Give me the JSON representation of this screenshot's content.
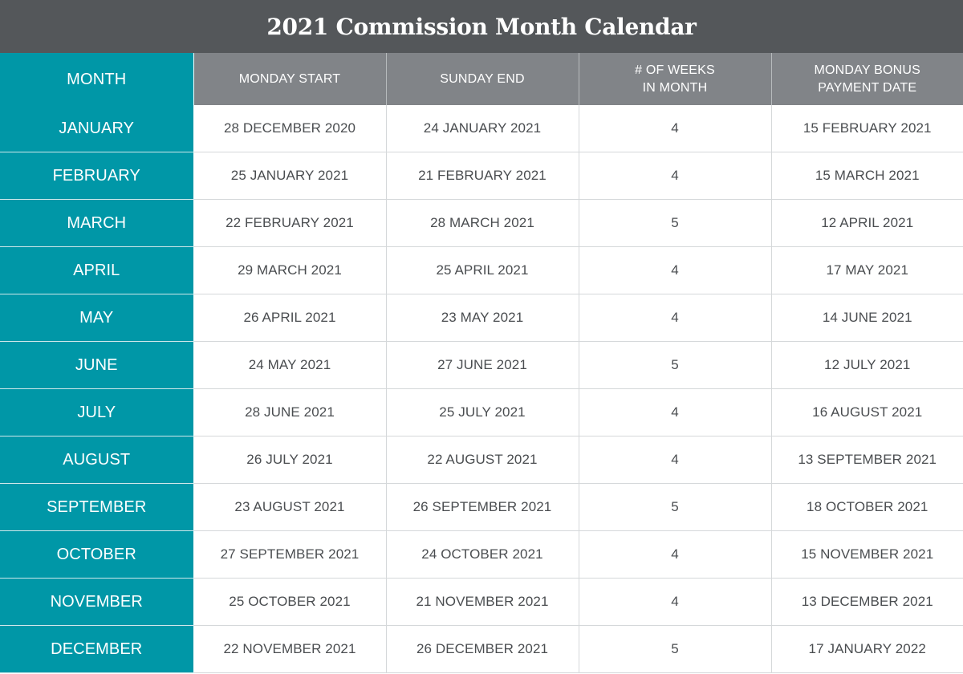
{
  "title": "2021 Commission Month Calendar",
  "colors": {
    "title_bar": "#54575a",
    "month_column": "#0097a7",
    "header_gray": "#818488",
    "body_text": "#4a4d50"
  },
  "headers": {
    "month": "MONTH",
    "monday_start": "MONDAY START",
    "sunday_end": "SUNDAY END",
    "weeks_line1": "# OF WEEKS",
    "weeks_line2": "IN MONTH",
    "bonus_line1": "MONDAY BONUS",
    "bonus_line2": "PAYMENT DATE"
  },
  "rows": [
    {
      "month": "JANUARY",
      "start": "28 DECEMBER 2020",
      "end": "24 JANUARY 2021",
      "weeks": "4",
      "payment": "15 FEBRUARY 2021"
    },
    {
      "month": "FEBRUARY",
      "start": "25 JANUARY 2021",
      "end": "21 FEBRUARY 2021",
      "weeks": "4",
      "payment": "15 MARCH 2021"
    },
    {
      "month": "MARCH",
      "start": "22 FEBRUARY 2021",
      "end": "28 MARCH 2021",
      "weeks": "5",
      "payment": "12 APRIL 2021"
    },
    {
      "month": "APRIL",
      "start": "29 MARCH 2021",
      "end": "25 APRIL 2021",
      "weeks": "4",
      "payment": "17 MAY 2021"
    },
    {
      "month": "MAY",
      "start": "26 APRIL 2021",
      "end": "23 MAY 2021",
      "weeks": "4",
      "payment": "14 JUNE 2021"
    },
    {
      "month": "JUNE",
      "start": "24 MAY 2021",
      "end": "27 JUNE 2021",
      "weeks": "5",
      "payment": "12 JULY 2021"
    },
    {
      "month": "JULY",
      "start": "28 JUNE 2021",
      "end": "25 JULY 2021",
      "weeks": "4",
      "payment": "16 AUGUST 2021"
    },
    {
      "month": "AUGUST",
      "start": "26 JULY 2021",
      "end": "22 AUGUST 2021",
      "weeks": "4",
      "payment": "13 SEPTEMBER 2021"
    },
    {
      "month": "SEPTEMBER",
      "start": "23 AUGUST 2021",
      "end": "26 SEPTEMBER 2021",
      "weeks": "5",
      "payment": "18 OCTOBER 2021"
    },
    {
      "month": "OCTOBER",
      "start": "27 SEPTEMBER 2021",
      "end": "24 OCTOBER 2021",
      "weeks": "4",
      "payment": "15 NOVEMBER 2021"
    },
    {
      "month": "NOVEMBER",
      "start": "25 OCTOBER 2021",
      "end": "21 NOVEMBER 2021",
      "weeks": "4",
      "payment": "13 DECEMBER 2021"
    },
    {
      "month": "DECEMBER",
      "start": "22 NOVEMBER 2021",
      "end": "26 DECEMBER 2021",
      "weeks": "5",
      "payment": "17 JANUARY 2022"
    }
  ]
}
